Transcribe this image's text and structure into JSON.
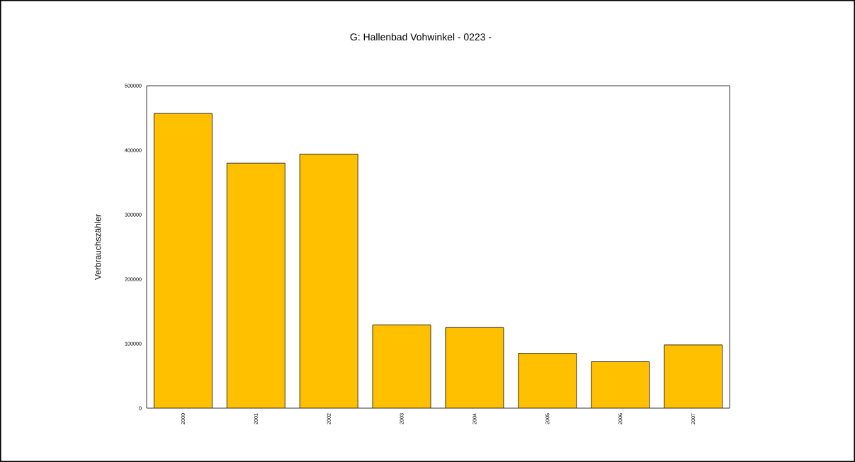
{
  "chart_data": {
    "type": "bar",
    "title": "G: Hallenbad Vohwinkel - 0223 -",
    "ylabel": "Verbrauchszähler",
    "categories": [
      "2000",
      "2001",
      "2002",
      "2003",
      "2004",
      "2005",
      "2006",
      "2007"
    ],
    "values": [
      457000,
      380000,
      394000,
      129000,
      125000,
      85000,
      72000,
      98000
    ],
    "color": "#ffc000",
    "ylim": [
      0,
      500000
    ],
    "yticks": [
      0,
      100000,
      200000,
      300000,
      400000,
      500000
    ]
  }
}
